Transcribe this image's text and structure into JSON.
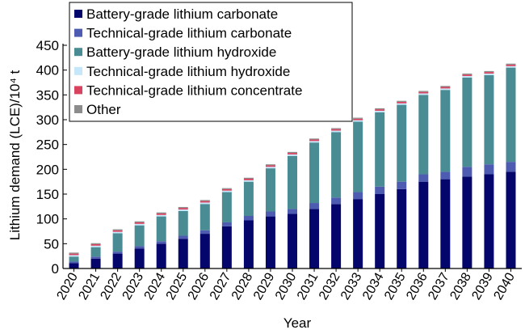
{
  "chart_data": {
    "type": "bar",
    "stacked": true,
    "xlabel": "Year",
    "ylabel": "Lithium demand (LCE)/10⁴ t",
    "ylim": [
      0,
      450
    ],
    "yticks": [
      0,
      50,
      100,
      150,
      200,
      250,
      300,
      350,
      400,
      450
    ],
    "grid": false,
    "legend_position": "top-left",
    "categories": [
      "2020",
      "2021",
      "2022",
      "2023",
      "2024",
      "2025",
      "2026",
      "2027",
      "2028",
      "2029",
      "2030",
      "2031",
      "2032",
      "2033",
      "2034",
      "2035",
      "2036",
      "2037",
      "2038",
      "2039",
      "2040"
    ],
    "series": [
      {
        "name": "Battery-grade lithium carbonate",
        "color": "#05066b",
        "values": [
          11,
          20,
          30,
          40,
          50,
          60,
          70,
          85,
          97,
          105,
          110,
          120,
          130,
          140,
          150,
          160,
          175,
          180,
          185,
          190,
          195
        ]
      },
      {
        "name": "Technical-grade lithium carbonate",
        "color": "#4d5cb0",
        "values": [
          3,
          4,
          4,
          5,
          5,
          6,
          7,
          8,
          9,
          10,
          10,
          12,
          13,
          14,
          15,
          15,
          15,
          15,
          20,
          20,
          20
        ]
      },
      {
        "name": "Battery-grade lithium hydroxide",
        "color": "#4a8c93",
        "values": [
          10,
          19,
          37,
          42,
          50,
          50,
          53,
          61,
          69,
          87,
          107,
          122,
          132,
          142,
          150,
          155,
          160,
          165,
          180,
          180,
          190
        ]
      },
      {
        "name": "Technical-grade lithium hydroxide",
        "color": "#c6e6f9",
        "values": [
          3,
          3,
          3,
          3,
          3,
          3,
          3,
          3,
          3,
          3,
          3,
          3,
          3,
          3,
          3,
          3,
          3,
          3,
          3,
          3,
          3
        ]
      },
      {
        "name": "Technical-grade lithium concentrate",
        "color": "#d8445f",
        "values": [
          3,
          3,
          3,
          3,
          3,
          3,
          3,
          3,
          3,
          3,
          3,
          3,
          3,
          3,
          3,
          3,
          3,
          3,
          3,
          3,
          3
        ]
      },
      {
        "name": "Other",
        "color": "#8c8c8c",
        "values": [
          2,
          2,
          2,
          2,
          2,
          2,
          2,
          2,
          2,
          2,
          2,
          2,
          2,
          2,
          2,
          2,
          2,
          2,
          2,
          2,
          2
        ]
      }
    ]
  }
}
